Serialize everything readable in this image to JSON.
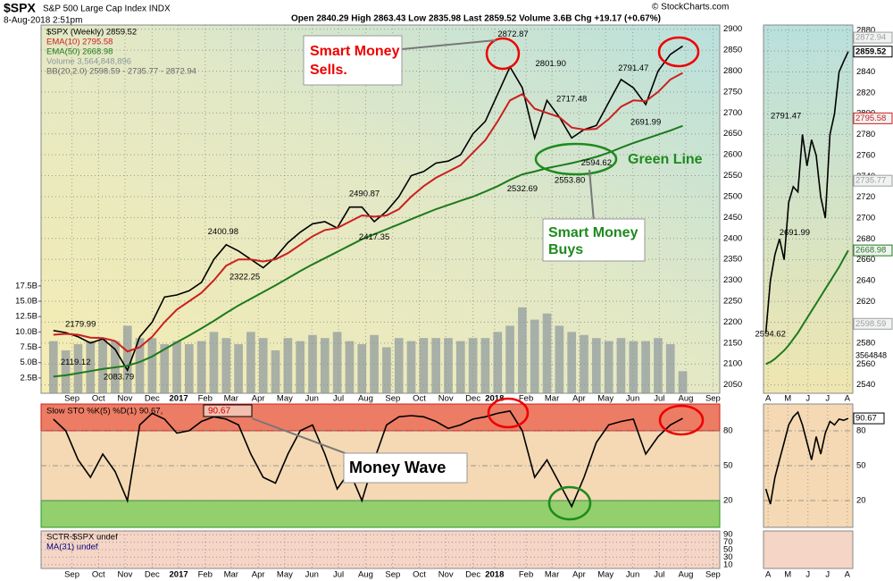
{
  "header": {
    "symbol": "$SPX",
    "name": "S&P 500 Large Cap Index INDX",
    "date": "8-Aug-2018 2:51pm",
    "quote": "Open 2840.29  High 2863.43  Low 2835.98  Last 2859.52  Volume 3.6B  Chg +19.17 (+0.67%)",
    "credit": "© StockCharts.com"
  },
  "annotations": {
    "sells": [
      "Smart Money",
      "Sells."
    ],
    "buys": [
      "Smart Money",
      "Buys"
    ],
    "green_line": "Green Line",
    "money_wave": "Money Wave"
  },
  "chart_data": [
    {
      "type": "line",
      "xlim": [
        0,
        110
      ],
      "ylim": [
        2030,
        2910
      ],
      "y2lim": [
        0,
        60
      ],
      "grid": true,
      "yticks": [
        2050,
        2100,
        2150,
        2200,
        2250,
        2300,
        2350,
        2400,
        2450,
        2500,
        2550,
        2600,
        2650,
        2700,
        2750,
        2800,
        2850,
        2900
      ],
      "y2ticks": [
        {
          "value": 2.5,
          "label": "2.5B"
        },
        {
          "value": 5,
          "label": "5.0B"
        },
        {
          "value": 7.5,
          "label": "7.5B"
        },
        {
          "value": 10,
          "label": "10.0B"
        },
        {
          "value": 12.5,
          "label": "12.5B"
        },
        {
          "value": 15,
          "label": "15.0B"
        },
        {
          "value": 17.5,
          "label": "17.5B"
        }
      ],
      "xticks": [
        {
          "value": 5,
          "label": "Sep"
        },
        {
          "value": 9.3,
          "label": "Oct"
        },
        {
          "value": 13.6,
          "label": "Nov"
        },
        {
          "value": 18,
          "label": "Dec"
        },
        {
          "value": 22.3,
          "label": "2017"
        },
        {
          "value": 26.6,
          "label": "Feb"
        },
        {
          "value": 30.8,
          "label": "Mar"
        },
        {
          "value": 35.2,
          "label": "Apr"
        },
        {
          "value": 39.5,
          "label": "May"
        },
        {
          "value": 43.9,
          "label": "Jun"
        },
        {
          "value": 48.2,
          "label": "Jul"
        },
        {
          "value": 52.6,
          "label": "Aug"
        },
        {
          "value": 57,
          "label": "Sep"
        },
        {
          "value": 61.3,
          "label": "Oct"
        },
        {
          "value": 65.6,
          "label": "Nov"
        },
        {
          "value": 70,
          "label": "Dec"
        },
        {
          "value": 73.5,
          "label": "2018"
        },
        {
          "value": 78.6,
          "label": "Feb"
        },
        {
          "value": 82.8,
          "label": "Mar"
        },
        {
          "value": 87.2,
          "label": "Apr"
        },
        {
          "value": 91.5,
          "label": "May"
        },
        {
          "value": 95.9,
          "label": "Jun"
        },
        {
          "value": 100.2,
          "label": "Jul"
        },
        {
          "value": 104.5,
          "label": "Aug"
        },
        {
          "value": 108.9,
          "label": "Sep"
        }
      ],
      "x": [
        2,
        4,
        6,
        8,
        10,
        12,
        14,
        16,
        18,
        20,
        22,
        24,
        26,
        28,
        30,
        32,
        34,
        36,
        38,
        40,
        42,
        44,
        46,
        48,
        50,
        52,
        54,
        56,
        58,
        60,
        62,
        64,
        66,
        68,
        70,
        72,
        74,
        76,
        78,
        80,
        82,
        84,
        86,
        88,
        90,
        92,
        94,
        96,
        98,
        100,
        102,
        104
      ],
      "series": [
        {
          "name": "$SPX (Weekly) 2859.52",
          "color": "#000000",
          "values": [
            2180,
            2175,
            2165,
            2150,
            2160,
            2135,
            2085,
            2165,
            2200,
            2260,
            2265,
            2275,
            2295,
            2350,
            2385,
            2370,
            2350,
            2330,
            2355,
            2390,
            2415,
            2435,
            2440,
            2425,
            2475,
            2475,
            2440,
            2465,
            2500,
            2550,
            2560,
            2580,
            2585,
            2600,
            2650,
            2680,
            2745,
            2810,
            2760,
            2640,
            2730,
            2690,
            2640,
            2660,
            2670,
            2725,
            2780,
            2760,
            2720,
            2800,
            2840,
            2859.52
          ]
        },
        {
          "name": "EMA(10) 2795.58",
          "color": "#cc2020",
          "values": [
            2170,
            2172,
            2170,
            2163,
            2162,
            2155,
            2130,
            2140,
            2165,
            2200,
            2230,
            2250,
            2270,
            2300,
            2335,
            2350,
            2350,
            2345,
            2350,
            2365,
            2385,
            2405,
            2420,
            2425,
            2440,
            2455,
            2452,
            2455,
            2470,
            2500,
            2525,
            2545,
            2560,
            2575,
            2605,
            2635,
            2680,
            2730,
            2745,
            2710,
            2700,
            2690,
            2665,
            2660,
            2662,
            2685,
            2715,
            2730,
            2728,
            2750,
            2780,
            2795.58
          ]
        },
        {
          "name": "EMA(50) 2668.98",
          "color": "#1e7a1e",
          "values": [
            2070,
            2073,
            2078,
            2083,
            2088,
            2092,
            2096,
            2105,
            2118,
            2135,
            2152,
            2168,
            2185,
            2203,
            2222,
            2240,
            2256,
            2272,
            2288,
            2305,
            2322,
            2338,
            2353,
            2368,
            2383,
            2398,
            2410,
            2422,
            2434,
            2446,
            2458,
            2470,
            2480,
            2490,
            2500,
            2512,
            2525,
            2540,
            2553,
            2560,
            2568,
            2574,
            2580,
            2587,
            2595,
            2605,
            2617,
            2628,
            2638,
            2648,
            2658,
            2668.98
          ]
        },
        {
          "name": "Volume 3,564,848,896",
          "color": "#8c979c",
          "axis": "y2",
          "values": [
            8.5,
            7,
            8,
            8.5,
            9,
            8.5,
            11,
            9,
            9,
            8,
            8.5,
            8,
            8.5,
            10,
            9,
            8,
            10,
            9,
            7,
            9,
            8.5,
            9.5,
            9,
            10,
            8.5,
            8,
            9.5,
            7.5,
            9,
            8.5,
            9,
            9,
            9,
            8.5,
            9,
            9,
            10,
            11,
            14,
            12,
            13,
            11,
            10,
            9.5,
            9,
            8.5,
            9,
            8.5,
            8.5,
            9,
            8,
            3.6
          ]
        }
      ],
      "legend_extra": "BB(20,2.0) 2598.59 - 2735.77 - 2872.94",
      "price_labels": [
        {
          "x": 76.5,
          "value": 2872.87,
          "label": "2872.87"
        },
        {
          "x": 82.6,
          "value": 2801.9,
          "label": "2801.90"
        },
        {
          "x": 96,
          "value": 2791.47,
          "label": "2791.47"
        },
        {
          "x": 86,
          "value": 2717.48,
          "label": "2717.48"
        },
        {
          "x": 98,
          "value": 2691.99,
          "label": "2691.99"
        },
        {
          "x": 90,
          "value": 2594.62,
          "label": "2594.62"
        },
        {
          "x": 85.7,
          "value": 2553.8,
          "label": "2553.80"
        },
        {
          "x": 78,
          "value": 2532.69,
          "label": "2532.69"
        },
        {
          "x": 52.4,
          "value": 2490.87,
          "label": "2490.87"
        },
        {
          "x": 54,
          "value": 2417.35,
          "label": "2417.35"
        },
        {
          "x": 29.5,
          "value": 2400.98,
          "label": "2400.98"
        },
        {
          "x": 33,
          "value": 2322.25,
          "label": "2322.25"
        },
        {
          "x": 6.4,
          "value": 2179.99,
          "label": "2179.99"
        },
        {
          "x": 5.6,
          "value": 2119.12,
          "label": "2119.12"
        },
        {
          "x": 12.6,
          "value": 2083.79,
          "label": "2083.79"
        }
      ]
    },
    {
      "type": "line",
      "xlim": [
        0,
        110
      ],
      "ylim": [
        -3,
        103
      ],
      "yticks": [
        20,
        50,
        80
      ],
      "overbought": 80,
      "oversold": 20,
      "x": [
        2,
        4,
        6,
        8,
        10,
        12,
        14,
        16,
        18,
        20,
        22,
        24,
        26,
        28,
        30,
        32,
        34,
        36,
        38,
        40,
        42,
        44,
        46,
        48,
        50,
        52,
        54,
        56,
        58,
        60,
        62,
        64,
        66,
        68,
        70,
        72,
        74,
        76,
        78,
        80,
        82,
        84,
        86,
        88,
        90,
        92,
        94,
        96,
        98,
        100,
        102,
        104
      ],
      "series": [
        {
          "name": "Slow STO %K(5) %D(1) 90.67,",
          "color": "#000000",
          "values": [
            90,
            80,
            55,
            40,
            60,
            45,
            20,
            85,
            95,
            90,
            78,
            80,
            88,
            92,
            90,
            85,
            60,
            40,
            35,
            60,
            80,
            85,
            60,
            30,
            45,
            20,
            55,
            85,
            92,
            93,
            92,
            88,
            82,
            85,
            90,
            92,
            95,
            97,
            80,
            40,
            55,
            35,
            15,
            40,
            70,
            85,
            88,
            90,
            60,
            75,
            85,
            90.67
          ]
        }
      ],
      "legend_value": 90.67
    },
    {
      "type": "line",
      "xlim": [
        0,
        110
      ],
      "ylim": [
        0,
        100
      ],
      "yticks": [
        10,
        30,
        50,
        70,
        90
      ],
      "legend": [
        "SCTR-$SPX undef",
        "MA(31) undef"
      ],
      "xticks": [
        {
          "value": 5,
          "label": "Sep"
        },
        {
          "value": 9.3,
          "label": "Oct"
        },
        {
          "value": 13.6,
          "label": "Nov"
        },
        {
          "value": 18,
          "label": "Dec"
        },
        {
          "value": 22.3,
          "label": "2017"
        },
        {
          "value": 26.6,
          "label": "Feb"
        },
        {
          "value": 30.8,
          "label": "Mar"
        },
        {
          "value": 35.2,
          "label": "Apr"
        },
        {
          "value": 39.5,
          "label": "May"
        },
        {
          "value": 43.9,
          "label": "Jun"
        },
        {
          "value": 48.2,
          "label": "Jul"
        },
        {
          "value": 52.6,
          "label": "Aug"
        },
        {
          "value": 57,
          "label": "Sep"
        },
        {
          "value": 61.3,
          "label": "Oct"
        },
        {
          "value": 65.6,
          "label": "Nov"
        },
        {
          "value": 70,
          "label": "Dec"
        },
        {
          "value": 73.5,
          "label": "2018"
        },
        {
          "value": 78.6,
          "label": "Feb"
        },
        {
          "value": 82.8,
          "label": "Mar"
        },
        {
          "value": 87.2,
          "label": "Apr"
        },
        {
          "value": 91.5,
          "label": "May"
        },
        {
          "value": 95.9,
          "label": "Jun"
        },
        {
          "value": 100.2,
          "label": "Jul"
        },
        {
          "value": 104.5,
          "label": "Aug"
        },
        {
          "value": 108.9,
          "label": "Sep"
        }
      ]
    },
    {
      "type": "line",
      "xlim": [
        -0.5,
        19
      ],
      "ylim": [
        2532,
        2885
      ],
      "yticks": [
        2540,
        2560,
        2580,
        2600,
        2620,
        2640,
        2660,
        2680,
        2700,
        2720,
        2740,
        2760,
        2780,
        2800,
        2820,
        2840,
        2860,
        2880
      ],
      "xticks": [
        {
          "value": 0.5,
          "label": "A"
        },
        {
          "value": 4.8,
          "label": "M"
        },
        {
          "value": 9.2,
          "label": "J"
        },
        {
          "value": 13.5,
          "label": "J"
        },
        {
          "value": 17.8,
          "label": "A"
        }
      ],
      "x": [
        0,
        1,
        2,
        3,
        4,
        5,
        6,
        7,
        8,
        9,
        10,
        11,
        12,
        13,
        14,
        15,
        16,
        17,
        18
      ],
      "series": [
        {
          "color": "#000000",
          "values": [
            2590,
            2640,
            2665,
            2680,
            2660,
            2715,
            2730,
            2725,
            2780,
            2750,
            2775,
            2760,
            2720,
            2700,
            2780,
            2800,
            2840,
            2850,
            2859.52
          ]
        },
        {
          "color": "#1e7a1e",
          "values": [
            2560,
            2562,
            2565,
            2569,
            2573,
            2578,
            2584,
            2590,
            2597,
            2604,
            2611,
            2618,
            2625,
            2632,
            2639,
            2646,
            2653,
            2661,
            2668.98
          ]
        }
      ],
      "axis_labels": [
        {
          "value": 2872.94,
          "label": "2872.94",
          "color": "#9aa0a0"
        },
        {
          "value": 2859.52,
          "label": "2859.52",
          "color": "#000000"
        },
        {
          "value": 2795.58,
          "label": "2795.58",
          "color": "#cc2020"
        },
        {
          "value": 2735.77,
          "label": "2735.77",
          "color": "#9aa0a0"
        },
        {
          "value": 2668.98,
          "label": "2668.98",
          "color": "#1e7a1e"
        },
        {
          "value": 2598.59,
          "label": "2598.59",
          "color": "#9aa0a0"
        }
      ],
      "volume_label": 3564848,
      "price_labels": [
        {
          "x": 4.4,
          "value": 2791.47,
          "label": "2791.47"
        },
        {
          "x": 6.3,
          "value": 2691.99,
          "label": "2691.99"
        },
        {
          "x": 1,
          "value": 2594.62,
          "label": "2594.62"
        }
      ]
    },
    {
      "type": "line",
      "xlim": [
        -0.5,
        19
      ],
      "ylim": [
        -3,
        103
      ],
      "yticks": [
        20,
        50,
        80
      ],
      "xticks": [
        {
          "value": 0.5,
          "label": "A"
        },
        {
          "value": 4.8,
          "label": "M"
        },
        {
          "value": 9.2,
          "label": "J"
        },
        {
          "value": 13.5,
          "label": "J"
        },
        {
          "value": 17.8,
          "label": "A"
        }
      ],
      "x": [
        0,
        1,
        2,
        3,
        4,
        5,
        6,
        7,
        8,
        9,
        10,
        11,
        12,
        13,
        14,
        15,
        16,
        17,
        18
      ],
      "series": [
        {
          "color": "#000000",
          "values": [
            30,
            17,
            40,
            55,
            70,
            85,
            92,
            96,
            85,
            70,
            55,
            75,
            60,
            78,
            88,
            85,
            90,
            89,
            90.67
          ]
        }
      ],
      "legend_value": 90.67
    }
  ]
}
